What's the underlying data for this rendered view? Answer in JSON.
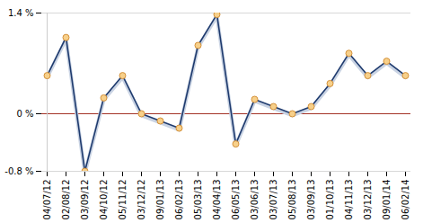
{
  "chart_data": {
    "type": "line",
    "categories": [
      "04/07/12",
      "02/08/12",
      "03/09/12",
      "04/10/12",
      "05/11/12",
      "03/12/12",
      "09/01/13",
      "06/02/13",
      "05/03/13",
      "04/04/13",
      "06/05/13",
      "03/06/13",
      "03/07/13",
      "05/08/13",
      "03/09/13",
      "01/10/13",
      "04/11/13",
      "03/12/13",
      "09/01/14",
      "06/02/14"
    ],
    "values": [
      0.53,
      1.06,
      -0.8,
      0.22,
      0.53,
      0,
      -0.1,
      -0.2,
      0.95,
      1.38,
      -0.42,
      0.2,
      0.1,
      0,
      0.1,
      0.42,
      0.84,
      0.53,
      0.73,
      0.53
    ],
    "color": "#1f3b6e",
    "marker": "circle",
    "ylim": [
      -0.8,
      1.4
    ],
    "yticks": [
      {
        "value": -0.8,
        "label": "-0.8 %"
      },
      {
        "value": 0,
        "label": "0 %"
      },
      {
        "value": 1.4,
        "label": "1.4 %"
      }
    ],
    "grid": true
  }
}
